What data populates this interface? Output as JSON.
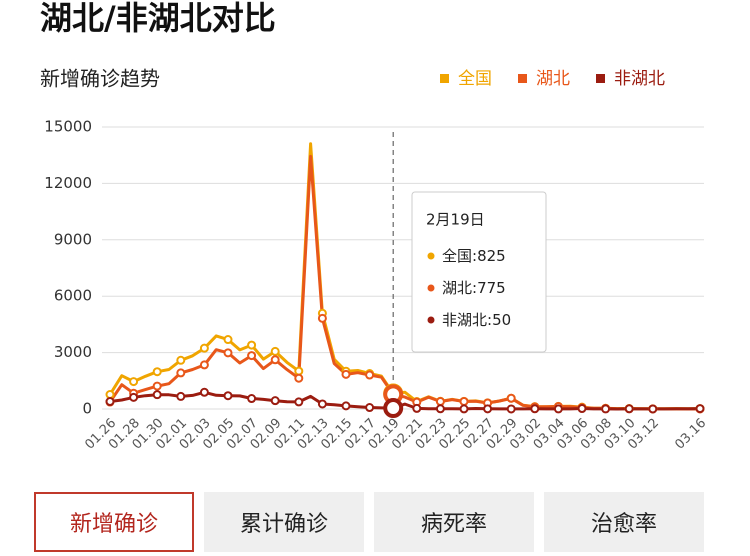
{
  "chart_data": {
    "type": "line",
    "title": "湖北/非湖北对比",
    "subtitle": "新增确诊趋势",
    "categories": [
      "01.26",
      null,
      "01.28",
      null,
      "01.30",
      null,
      "02.01",
      null,
      "02.03",
      null,
      "02.05",
      null,
      "02.07",
      null,
      "02.09",
      null,
      "02.11",
      null,
      "02.13",
      null,
      "02.15",
      null,
      "02.17",
      null,
      "02.19",
      null,
      "02.21",
      null,
      "02.23",
      null,
      "02.25",
      null,
      "02.27",
      null,
      "02.29",
      null,
      "03.02",
      null,
      "03.04",
      null,
      "03.06",
      null,
      "03.08",
      null,
      "03.10",
      null,
      "03.12",
      null,
      null,
      null,
      "03.16"
    ],
    "series": [
      {
        "name": "全国",
        "color": "#f0a500",
        "values": [
          769,
          1771,
          1459,
          1737,
          1982,
          2102,
          2590,
          2829,
          3235,
          3887,
          3694,
          3143,
          3399,
          2656,
          3062,
          2478,
          2015,
          14108,
          5090,
          2641,
          2009,
          2048,
          1886,
          1749,
          825,
          889,
          397,
          648,
          409,
          508,
          406,
          433,
          327,
          427,
          573,
          202,
          125,
          119,
          139,
          143,
          99,
          44,
          40,
          19,
          24,
          15,
          8,
          11,
          20,
          16,
          21
        ]
      },
      {
        "name": "湖北",
        "color": "#e8571a",
        "values": [
          371,
          1291,
          840,
          1032,
          1220,
          1347,
          1921,
          2103,
          2345,
          3156,
          2987,
          2447,
          2841,
          2147,
          2618,
          2097,
          1638,
          13436,
          4823,
          2420,
          1843,
          1933,
          1807,
          1693,
          775,
          631,
          366,
          630,
          398,
          499,
          401,
          409,
          318,
          423,
          570,
          196,
          114,
          115,
          134,
          126,
          74,
          41,
          36,
          17,
          13,
          8,
          5,
          4,
          4,
          1,
          0
        ]
      },
      {
        "name": "非湖北",
        "color": "#9b1c10",
        "values": [
          398,
          480,
          619,
          705,
          762,
          755,
          669,
          726,
          890,
          731,
          707,
          696,
          558,
          509,
          444,
          381,
          377,
          672,
          267,
          221,
          166,
          115,
          79,
          56,
          50,
          258,
          31,
          18,
          11,
          9,
          5,
          24,
          9,
          4,
          3,
          6,
          11,
          5,
          4,
          5,
          25,
          3,
          4,
          2,
          11,
          7,
          3,
          7,
          16,
          15,
          21
        ]
      }
    ],
    "ylim": [
      0,
      15000
    ],
    "yticks": [
      0,
      3000,
      6000,
      9000,
      12000,
      15000
    ],
    "grid": true,
    "legend": "top-right",
    "tooltip": {
      "title": "2月19日",
      "separator": ":"
    }
  },
  "tabs": [
    "新增确诊",
    "累计确诊",
    "病死率",
    "治愈率"
  ]
}
